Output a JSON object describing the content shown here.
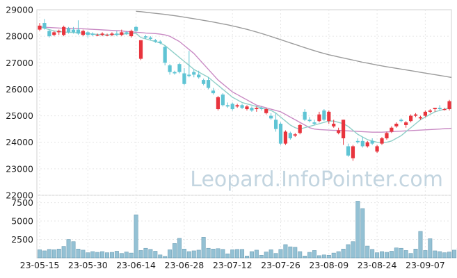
{
  "chart_data": {
    "type": "candlestick",
    "watermark": "Leopard.InfoPointer.com",
    "price_axis": {
      "ylim": [
        22000,
        29000
      ],
      "ticks": [
        22000,
        23000,
        24000,
        25000,
        26000,
        27000,
        28000,
        29000
      ],
      "grid": true
    },
    "volume_axis": {
      "ylim": [
        0,
        8500
      ],
      "ticks": [
        2500,
        5000,
        7500
      ],
      "grid": true
    },
    "x_ticks": [
      {
        "label": "23-05-15",
        "index": 0
      },
      {
        "label": "23-05-30",
        "index": 10
      },
      {
        "label": "23-06-14",
        "index": 20
      },
      {
        "label": "23-06-28",
        "index": 30
      },
      {
        "label": "23-07-12",
        "index": 40
      },
      {
        "label": "23-07-26",
        "index": 50
      },
      {
        "label": "23-08-09",
        "index": 60
      },
      {
        "label": "23-08-24",
        "index": 70
      },
      {
        "label": "23-09-07",
        "index": 80
      }
    ],
    "colors": {
      "up": "#e8343d",
      "down": "#5fc4d4",
      "ma_short": "#8fcfc8",
      "ma_mid": "#c98ac4",
      "ma_long": "#9b9b9b",
      "volume": "#94c1d4",
      "volume_edge": "#6e9fb5",
      "grid": "#e6e6e6"
    },
    "ohlc": [
      [
        28250,
        28500,
        28200,
        28400
      ],
      [
        28500,
        28650,
        28250,
        28300
      ],
      [
        28200,
        28250,
        27950,
        28000
      ],
      [
        28050,
        28200,
        28000,
        28150
      ],
      [
        28150,
        28250,
        28050,
        28200
      ],
      [
        28050,
        28400,
        28000,
        28350
      ],
      [
        28300,
        28350,
        28100,
        28150
      ],
      [
        28250,
        28350,
        28100,
        28150
      ],
      [
        28250,
        28600,
        28050,
        28100
      ],
      [
        28050,
        28250,
        28000,
        28200
      ],
      [
        28150,
        28200,
        27950,
        28050
      ],
      [
        28100,
        28150,
        28000,
        28050
      ],
      [
        28050,
        28100,
        28000,
        28050
      ],
      [
        28050,
        28150,
        28000,
        28100
      ],
      [
        28050,
        28100,
        28000,
        28050
      ],
      [
        28050,
        28150,
        28000,
        28100
      ],
      [
        28100,
        28200,
        28000,
        28050
      ],
      [
        28050,
        28250,
        28000,
        28150
      ],
      [
        28150,
        28200,
        28050,
        28100
      ],
      [
        28000,
        28250,
        27950,
        28200
      ],
      [
        28350,
        28400,
        28150,
        28200
      ],
      [
        27150,
        27850,
        27100,
        27850
      ],
      [
        28000,
        28050,
        27900,
        27950
      ],
      [
        27950,
        28000,
        27850,
        27900
      ],
      [
        27850,
        27900,
        27750,
        27800
      ],
      [
        27800,
        27850,
        27700,
        27750
      ],
      [
        27600,
        27650,
        26900,
        27000
      ],
      [
        26900,
        26950,
        26550,
        26650
      ],
      [
        26650,
        26700,
        26550,
        26600
      ],
      [
        26950,
        27000,
        26600,
        26650
      ],
      [
        26600,
        26800,
        26150,
        26200
      ],
      [
        26550,
        27450,
        26450,
        26500
      ],
      [
        26650,
        26750,
        26450,
        26550
      ],
      [
        26550,
        26700,
        26400,
        26450
      ],
      [
        26350,
        26400,
        26150,
        26200
      ],
      [
        26350,
        26450,
        26000,
        26050
      ],
      [
        25950,
        26050,
        25800,
        25850
      ],
      [
        25250,
        25750,
        25200,
        25700
      ],
      [
        25800,
        25850,
        25350,
        25400
      ],
      [
        25400,
        25500,
        25300,
        25350
      ],
      [
        25450,
        25500,
        25200,
        25250
      ],
      [
        25350,
        25450,
        25300,
        25400
      ],
      [
        25400,
        25450,
        25250,
        25300
      ],
      [
        25250,
        25400,
        25200,
        25350
      ],
      [
        25300,
        25350,
        25150,
        25200
      ],
      [
        25250,
        25350,
        25150,
        25300
      ],
      [
        25300,
        25350,
        25200,
        25250
      ],
      [
        25100,
        25300,
        25050,
        25250
      ],
      [
        25000,
        25100,
        24850,
        24900
      ],
      [
        24850,
        25100,
        24400,
        24500
      ],
      [
        24700,
        24750,
        23900,
        23950
      ],
      [
        23950,
        24450,
        23900,
        24400
      ],
      [
        24350,
        24400,
        24100,
        24150
      ],
      [
        24250,
        24350,
        24200,
        24300
      ],
      [
        24350,
        24700,
        24300,
        24650
      ],
      [
        25150,
        25250,
        24800,
        24850
      ],
      [
        24850,
        24950,
        24750,
        24800
      ],
      [
        24750,
        24850,
        24650,
        24700
      ],
      [
        24800,
        25150,
        24750,
        25050
      ],
      [
        25200,
        25250,
        24800,
        24850
      ],
      [
        24800,
        25200,
        24700,
        25150
      ],
      [
        24600,
        24850,
        24550,
        24700
      ],
      [
        24350,
        24550,
        24300,
        24450
      ],
      [
        24150,
        24850,
        23900,
        24850
      ],
      [
        23850,
        23950,
        23450,
        23500
      ],
      [
        23400,
        23900,
        23300,
        23850
      ],
      [
        24050,
        24150,
        23950,
        24000
      ],
      [
        24050,
        24200,
        23800,
        23850
      ],
      [
        23850,
        24050,
        23800,
        24000
      ],
      [
        24050,
        24150,
        23900,
        23950
      ],
      [
        23650,
        23900,
        23600,
        23850
      ],
      [
        23950,
        24200,
        23900,
        24150
      ],
      [
        24150,
        24400,
        24100,
        24350
      ],
      [
        24400,
        24600,
        24350,
        24550
      ],
      [
        24600,
        24750,
        24550,
        24700
      ],
      [
        24850,
        24900,
        24750,
        24800
      ],
      [
        24650,
        24800,
        24550,
        24750
      ],
      [
        24800,
        25050,
        24750,
        25000
      ],
      [
        25000,
        25100,
        24950,
        25050
      ],
      [
        24900,
        25000,
        24850,
        24950
      ],
      [
        25000,
        25200,
        24950,
        25150
      ],
      [
        25150,
        25250,
        25100,
        25200
      ],
      [
        25250,
        25300,
        25150,
        25300
      ],
      [
        25300,
        25400,
        25200,
        25250
      ],
      [
        25250,
        25300,
        25200,
        25250
      ],
      [
        25250,
        25600,
        25200,
        25550
      ],
      [
        25400,
        25450,
        25200,
        25300
      ],
      [
        25250,
        25350,
        25150,
        25200
      ],
      [
        25300,
        25400,
        25250,
        25350
      ],
      [
        25350,
        25400,
        25250,
        25300
      ],
      [
        25300,
        25350,
        25100,
        25250
      ]
    ],
    "volume": [
      1100,
      950,
      1150,
      1100,
      1200,
      1550,
      2500,
      2200,
      1200,
      1050,
      700,
      850,
      750,
      850,
      700,
      750,
      900,
      600,
      800,
      650,
      5850,
      1000,
      1300,
      1150,
      900,
      400,
      200,
      1100,
      1950,
      2650,
      1200,
      850,
      950,
      1050,
      2800,
      1300,
      1200,
      1250,
      1150,
      550,
      1100,
      1150,
      1150,
      250,
      850,
      1050,
      350,
      800,
      1100,
      600,
      1150,
      1800,
      1500,
      1450,
      850,
      250,
      750,
      1000,
      300,
      400,
      350,
      650,
      850,
      1200,
      1800,
      2200,
      7700,
      6700,
      1600,
      1150,
      700,
      850,
      750,
      900,
      1350,
      1300,
      1000,
      600,
      1200,
      3600,
      1000,
      2600,
      950,
      850,
      700,
      800,
      1050,
      1300,
      2000,
      1300,
      750
    ],
    "ma_short": [
      28350,
      28300,
      28250,
      28200,
      28180,
      28160,
      28150,
      28140,
      28130,
      28120,
      28100,
      28080,
      28070,
      28060,
      28050,
      28060,
      28070,
      28080,
      28090,
      28100,
      28110,
      27950,
      27900,
      27850,
      27800,
      27750,
      27650,
      27500,
      27350,
      27200,
      27050,
      26900,
      26750,
      26650,
      26550,
      26450,
      26300,
      26150,
      26000,
      25850,
      25700,
      25600,
      25500,
      25450,
      25400,
      25350,
      25300,
      25250,
      25200,
      25100,
      24950,
      24800,
      24650,
      24550,
      24500,
      24550,
      24600,
      24650,
      24700,
      24750,
      24800,
      24800,
      24750,
      24700,
      24600,
      24450,
      24300,
      24200,
      24100,
      24050,
      24000,
      23980,
      24000,
      24050,
      24150,
      24250,
      24400,
      24550,
      24700,
      24850,
      24950,
      25050,
      25150,
      25200,
      25250,
      25300,
      25300,
      25300,
      25300,
      25290,
      25280
    ],
    "ma_mid": [
      28350,
      28340,
      28330,
      28320,
      28310,
      28300,
      28300,
      28300,
      28290,
      28280,
      28270,
      28260,
      28250,
      28240,
      28230,
      28220,
      28210,
      28200,
      28180,
      28170,
      28150,
      28140,
      28120,
      28110,
      28100,
      28080,
      28050,
      28000,
      27900,
      27800,
      27650,
      27500,
      27350,
      27150,
      26950,
      26750,
      26550,
      26350,
      26200,
      26050,
      25900,
      25800,
      25700,
      25600,
      25500,
      25400,
      25350,
      25300,
      25250,
      25200,
      25150,
      25050,
      24950,
      24850,
      24750,
      24650,
      24550,
      24500,
      24480,
      24470,
      24460,
      24450,
      24450,
      24440,
      24430,
      24420,
      24410,
      24400,
      24390,
      24380,
      24380,
      24380,
      24390,
      24400,
      24410,
      24420,
      24430,
      24440,
      24450,
      24460,
      24470,
      24480,
      24490,
      24500,
      24510,
      24520,
      24540,
      24560,
      24600,
      24650,
      24700
    ],
    "ma_long": [
      null,
      null,
      null,
      null,
      null,
      null,
      null,
      null,
      null,
      null,
      null,
      null,
      null,
      null,
      null,
      null,
      null,
      null,
      null,
      null,
      28940,
      28925,
      28905,
      28885,
      28865,
      28845,
      28825,
      28800,
      28775,
      28750,
      28720,
      28690,
      28660,
      28630,
      28600,
      28570,
      28535,
      28500,
      28465,
      28430,
      28390,
      28350,
      28305,
      28260,
      28210,
      28160,
      28105,
      28050,
      27990,
      27930,
      27870,
      27810,
      27750,
      27690,
      27630,
      27570,
      27510,
      27455,
      27400,
      27350,
      27300,
      27260,
      27220,
      27180,
      27140,
      27100,
      27060,
      27020,
      26985,
      26950,
      26915,
      26880,
      26850,
      26820,
      26790,
      26760,
      26730,
      26700,
      26670,
      26640,
      26610,
      26580,
      26550,
      26520,
      26490,
      26460,
      26430,
      26400,
      26370,
      26340,
      26310
    ]
  }
}
